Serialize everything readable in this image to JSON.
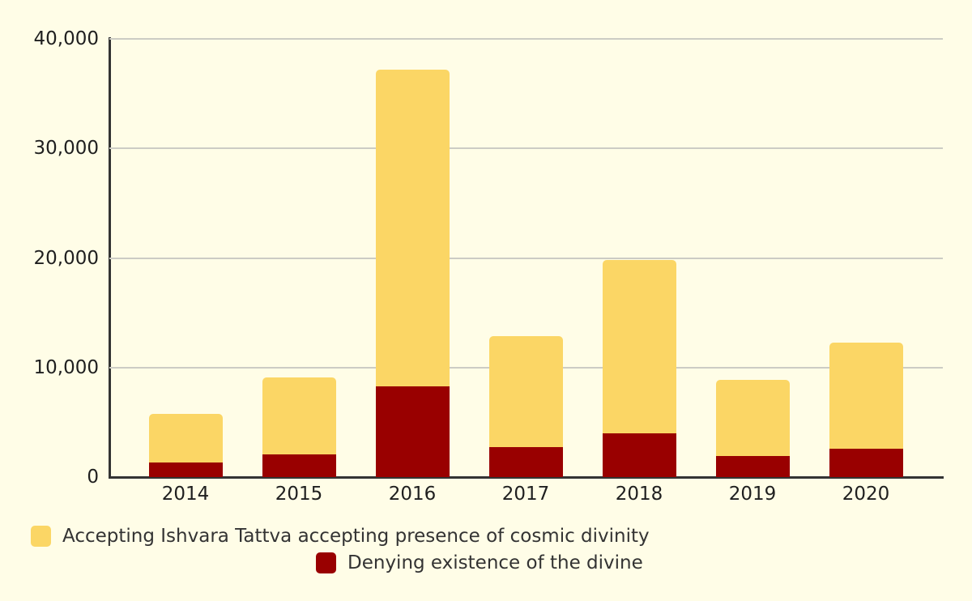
{
  "colors": {
    "background": "#FFFDE7",
    "gridline": "#CCCCC4",
    "axis_line": "#333333",
    "tick_text": "#1F1F1F",
    "legend_text": "#333333",
    "accepting_series": "#FBD665",
    "denying_series": "#990000"
  },
  "chart_data": {
    "type": "bar",
    "stacked": true,
    "title": "",
    "xlabel": "",
    "ylabel": "",
    "categories": [
      "2014",
      "2015",
      "2016",
      "2017",
      "2018",
      "2019",
      "2020"
    ],
    "series": [
      {
        "name": "Denying existence of the divine",
        "color": "#990000",
        "stack_order": "bottom",
        "values": [
          1300,
          2100,
          8300,
          2700,
          4000,
          1900,
          2600
        ]
      },
      {
        "name": "Accepting Ishvara Tattva accepting presence of cosmic divinity",
        "color": "#FBD665",
        "stack_order": "top",
        "values": [
          4500,
          7000,
          28900,
          10200,
          15800,
          7000,
          9700
        ]
      }
    ],
    "stack_totals": [
      5800,
      9100,
      37200,
      12900,
      19800,
      8900,
      12300
    ],
    "ylim": [
      0,
      40000
    ],
    "yticks": [
      0,
      10000,
      20000,
      30000,
      40000
    ],
    "ytick_labels": [
      "0",
      "10,000",
      "20,000",
      "30,000",
      "40,000"
    ],
    "grid": "horizontal",
    "legend_position": "bottom"
  },
  "legend": {
    "accepting_label": "Accepting Ishvara Tattva accepting presence of cosmic divinity",
    "denying_label": "Denying existence of the divine"
  }
}
